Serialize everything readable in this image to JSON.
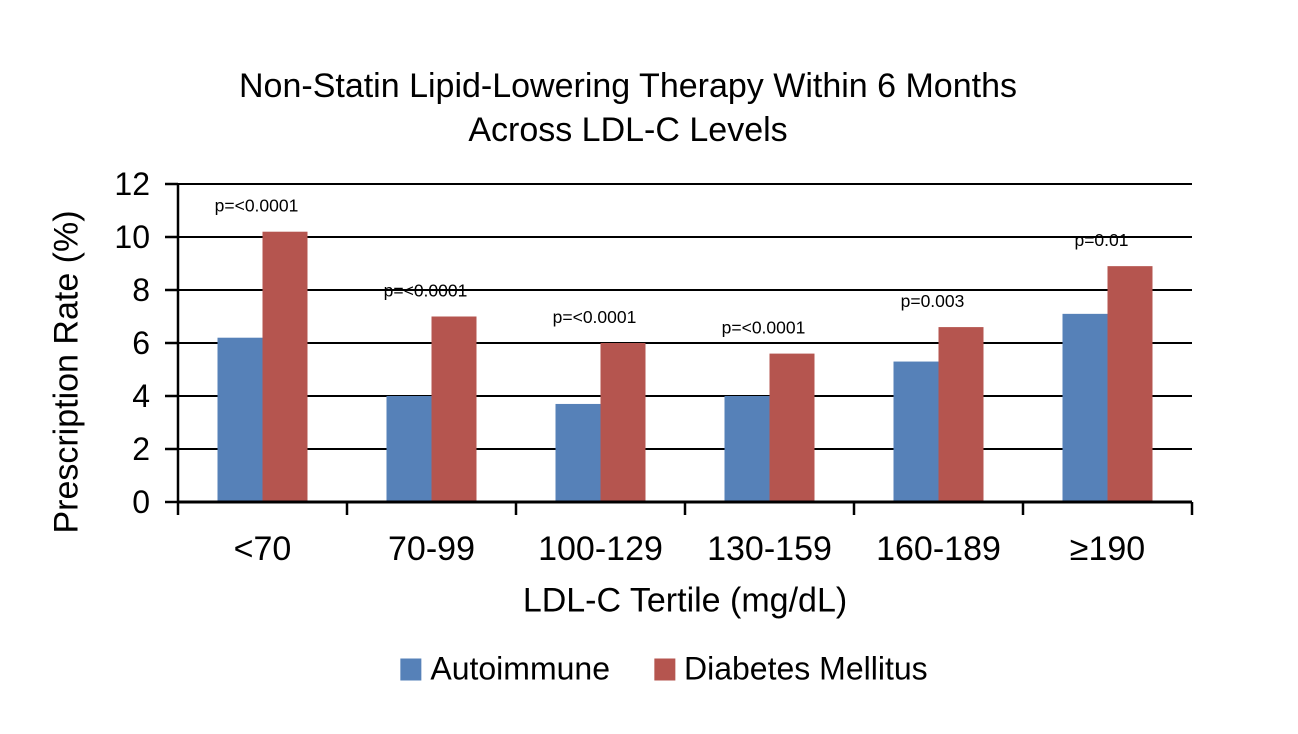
{
  "chart_data": {
    "type": "bar",
    "title": "Non-Statin Lipid-Lowering Therapy Within 6 Months Across LDL-C Levels",
    "title_lines": [
      "Non-Statin Lipid-Lowering Therapy Within 6 Months",
      "Across LDL-C Levels"
    ],
    "xlabel": "LDL-C Tertile (mg/dL)",
    "ylabel": "Prescription Rate (%)",
    "categories": [
      "<70",
      "70-99",
      "100-129",
      "130-159",
      "160-189",
      "≥190"
    ],
    "series": [
      {
        "name": "Autoimmune",
        "color": "#5681B8",
        "values": [
          6.2,
          4.0,
          3.7,
          4.0,
          5.3,
          7.1
        ]
      },
      {
        "name": "Diabetes Mellitus",
        "color": "#B5554F",
        "values": [
          10.2,
          7.0,
          6.0,
          5.6,
          6.6,
          8.9
        ]
      }
    ],
    "p_values": [
      "p=<0.0001",
      "p=<0.0001",
      "p=<0.0001",
      "p=<0.0001",
      "p=0.003",
      "p=0.01"
    ],
    "ylim": [
      0,
      12
    ],
    "yticks": [
      0,
      2,
      4,
      6,
      8,
      10,
      12
    ],
    "grid": true,
    "legend_position": "bottom",
    "axis_color": "#000000",
    "text_color": "#000000",
    "background_color": "#FFFFFF"
  }
}
